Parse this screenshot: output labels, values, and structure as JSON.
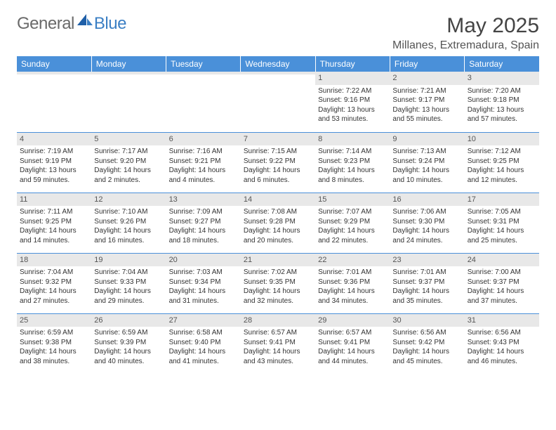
{
  "logo": {
    "general": "General",
    "blue": "Blue"
  },
  "title": "May 2025",
  "location": "Millanes, Extremadura, Spain",
  "colors": {
    "header_bg": "#4a90d9",
    "header_text": "#ffffff",
    "daynum_bg": "#e8e8e8",
    "border": "#4a90d9",
    "text": "#333333",
    "logo_general": "#6a6a6a",
    "logo_blue": "#3b7fc4"
  },
  "weekdays": [
    "Sunday",
    "Monday",
    "Tuesday",
    "Wednesday",
    "Thursday",
    "Friday",
    "Saturday"
  ],
  "weeks": [
    [
      {
        "day": "",
        "lines": [
          "",
          "",
          "",
          ""
        ]
      },
      {
        "day": "",
        "lines": [
          "",
          "",
          "",
          ""
        ]
      },
      {
        "day": "",
        "lines": [
          "",
          "",
          "",
          ""
        ]
      },
      {
        "day": "",
        "lines": [
          "",
          "",
          "",
          ""
        ]
      },
      {
        "day": "1",
        "lines": [
          "Sunrise: 7:22 AM",
          "Sunset: 9:16 PM",
          "Daylight: 13 hours",
          "and 53 minutes."
        ]
      },
      {
        "day": "2",
        "lines": [
          "Sunrise: 7:21 AM",
          "Sunset: 9:17 PM",
          "Daylight: 13 hours",
          "and 55 minutes."
        ]
      },
      {
        "day": "3",
        "lines": [
          "Sunrise: 7:20 AM",
          "Sunset: 9:18 PM",
          "Daylight: 13 hours",
          "and 57 minutes."
        ]
      }
    ],
    [
      {
        "day": "4",
        "lines": [
          "Sunrise: 7:19 AM",
          "Sunset: 9:19 PM",
          "Daylight: 13 hours",
          "and 59 minutes."
        ]
      },
      {
        "day": "5",
        "lines": [
          "Sunrise: 7:17 AM",
          "Sunset: 9:20 PM",
          "Daylight: 14 hours",
          "and 2 minutes."
        ]
      },
      {
        "day": "6",
        "lines": [
          "Sunrise: 7:16 AM",
          "Sunset: 9:21 PM",
          "Daylight: 14 hours",
          "and 4 minutes."
        ]
      },
      {
        "day": "7",
        "lines": [
          "Sunrise: 7:15 AM",
          "Sunset: 9:22 PM",
          "Daylight: 14 hours",
          "and 6 minutes."
        ]
      },
      {
        "day": "8",
        "lines": [
          "Sunrise: 7:14 AM",
          "Sunset: 9:23 PM",
          "Daylight: 14 hours",
          "and 8 minutes."
        ]
      },
      {
        "day": "9",
        "lines": [
          "Sunrise: 7:13 AM",
          "Sunset: 9:24 PM",
          "Daylight: 14 hours",
          "and 10 minutes."
        ]
      },
      {
        "day": "10",
        "lines": [
          "Sunrise: 7:12 AM",
          "Sunset: 9:25 PM",
          "Daylight: 14 hours",
          "and 12 minutes."
        ]
      }
    ],
    [
      {
        "day": "11",
        "lines": [
          "Sunrise: 7:11 AM",
          "Sunset: 9:25 PM",
          "Daylight: 14 hours",
          "and 14 minutes."
        ]
      },
      {
        "day": "12",
        "lines": [
          "Sunrise: 7:10 AM",
          "Sunset: 9:26 PM",
          "Daylight: 14 hours",
          "and 16 minutes."
        ]
      },
      {
        "day": "13",
        "lines": [
          "Sunrise: 7:09 AM",
          "Sunset: 9:27 PM",
          "Daylight: 14 hours",
          "and 18 minutes."
        ]
      },
      {
        "day": "14",
        "lines": [
          "Sunrise: 7:08 AM",
          "Sunset: 9:28 PM",
          "Daylight: 14 hours",
          "and 20 minutes."
        ]
      },
      {
        "day": "15",
        "lines": [
          "Sunrise: 7:07 AM",
          "Sunset: 9:29 PM",
          "Daylight: 14 hours",
          "and 22 minutes."
        ]
      },
      {
        "day": "16",
        "lines": [
          "Sunrise: 7:06 AM",
          "Sunset: 9:30 PM",
          "Daylight: 14 hours",
          "and 24 minutes."
        ]
      },
      {
        "day": "17",
        "lines": [
          "Sunrise: 7:05 AM",
          "Sunset: 9:31 PM",
          "Daylight: 14 hours",
          "and 25 minutes."
        ]
      }
    ],
    [
      {
        "day": "18",
        "lines": [
          "Sunrise: 7:04 AM",
          "Sunset: 9:32 PM",
          "Daylight: 14 hours",
          "and 27 minutes."
        ]
      },
      {
        "day": "19",
        "lines": [
          "Sunrise: 7:04 AM",
          "Sunset: 9:33 PM",
          "Daylight: 14 hours",
          "and 29 minutes."
        ]
      },
      {
        "day": "20",
        "lines": [
          "Sunrise: 7:03 AM",
          "Sunset: 9:34 PM",
          "Daylight: 14 hours",
          "and 31 minutes."
        ]
      },
      {
        "day": "21",
        "lines": [
          "Sunrise: 7:02 AM",
          "Sunset: 9:35 PM",
          "Daylight: 14 hours",
          "and 32 minutes."
        ]
      },
      {
        "day": "22",
        "lines": [
          "Sunrise: 7:01 AM",
          "Sunset: 9:36 PM",
          "Daylight: 14 hours",
          "and 34 minutes."
        ]
      },
      {
        "day": "23",
        "lines": [
          "Sunrise: 7:01 AM",
          "Sunset: 9:37 PM",
          "Daylight: 14 hours",
          "and 35 minutes."
        ]
      },
      {
        "day": "24",
        "lines": [
          "Sunrise: 7:00 AM",
          "Sunset: 9:37 PM",
          "Daylight: 14 hours",
          "and 37 minutes."
        ]
      }
    ],
    [
      {
        "day": "25",
        "lines": [
          "Sunrise: 6:59 AM",
          "Sunset: 9:38 PM",
          "Daylight: 14 hours",
          "and 38 minutes."
        ]
      },
      {
        "day": "26",
        "lines": [
          "Sunrise: 6:59 AM",
          "Sunset: 9:39 PM",
          "Daylight: 14 hours",
          "and 40 minutes."
        ]
      },
      {
        "day": "27",
        "lines": [
          "Sunrise: 6:58 AM",
          "Sunset: 9:40 PM",
          "Daylight: 14 hours",
          "and 41 minutes."
        ]
      },
      {
        "day": "28",
        "lines": [
          "Sunrise: 6:57 AM",
          "Sunset: 9:41 PM",
          "Daylight: 14 hours",
          "and 43 minutes."
        ]
      },
      {
        "day": "29",
        "lines": [
          "Sunrise: 6:57 AM",
          "Sunset: 9:41 PM",
          "Daylight: 14 hours",
          "and 44 minutes."
        ]
      },
      {
        "day": "30",
        "lines": [
          "Sunrise: 6:56 AM",
          "Sunset: 9:42 PM",
          "Daylight: 14 hours",
          "and 45 minutes."
        ]
      },
      {
        "day": "31",
        "lines": [
          "Sunrise: 6:56 AM",
          "Sunset: 9:43 PM",
          "Daylight: 14 hours",
          "and 46 minutes."
        ]
      }
    ]
  ]
}
